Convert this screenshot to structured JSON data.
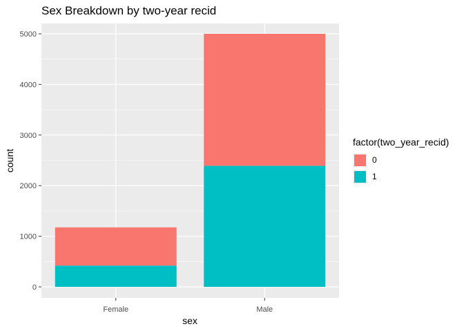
{
  "chart_data": {
    "type": "bar",
    "stacked": true,
    "title": "Sex Breakdown by two-year recid",
    "xlabel": "sex",
    "ylabel": "count",
    "categories": [
      "Female",
      "Male"
    ],
    "series": [
      {
        "name": "0",
        "color": "#F8766D",
        "values": [
          755,
          2608
        ]
      },
      {
        "name": "1",
        "color": "#00BFC4",
        "values": [
          420,
          2392
        ]
      }
    ],
    "ylim": [
      0,
      5200
    ],
    "yticks": [
      0,
      1000,
      2000,
      3000,
      4000,
      5000
    ],
    "grid": true,
    "legend": {
      "title": "factor(two_year_recid)",
      "placement": "right",
      "items": [
        {
          "label": "0",
          "color": "#F8766D"
        },
        {
          "label": "1",
          "color": "#00BFC4"
        }
      ]
    }
  }
}
